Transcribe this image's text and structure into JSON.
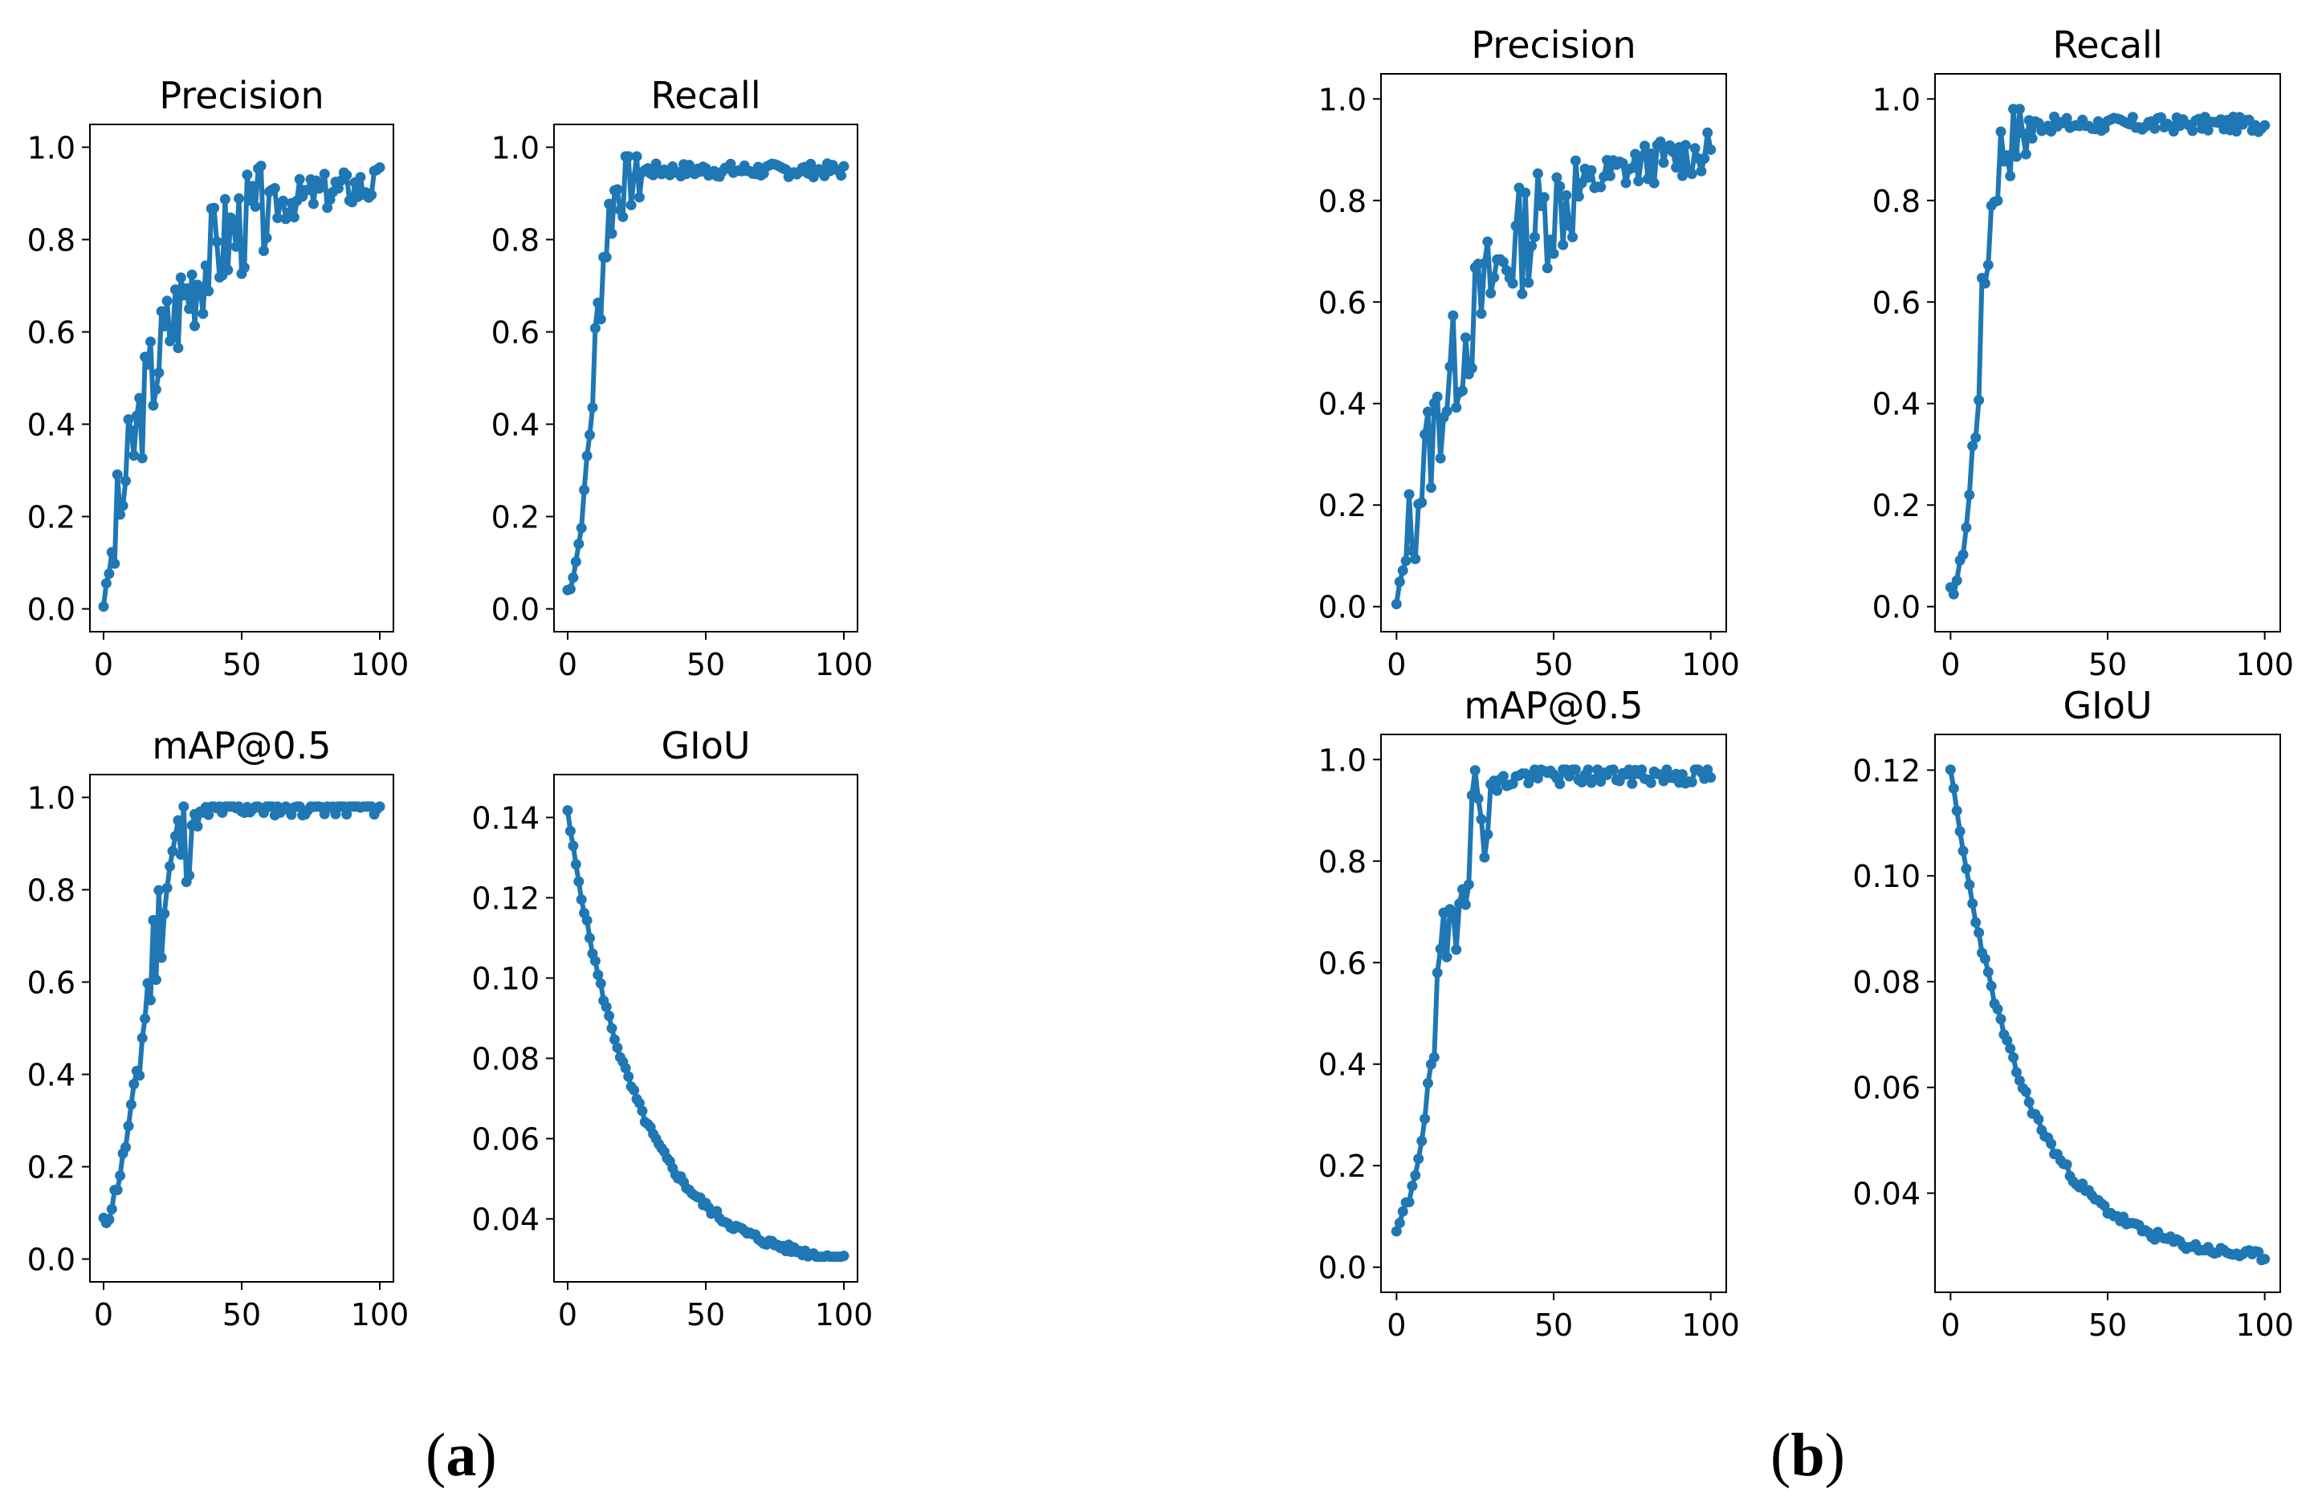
{
  "labels": {
    "a": "a",
    "b": "b",
    "open": "(",
    "close": ")"
  },
  "colors": {
    "line": "#1f77b4",
    "axis": "#000000",
    "text": "#000000"
  },
  "chart_data": [
    {
      "id": "a-precision",
      "type": "line",
      "title": "Precision",
      "xlim": [
        0,
        100
      ],
      "ylim": [
        0,
        1.0
      ],
      "xticks": [
        0,
        50,
        100
      ],
      "xticklabels": [
        "0",
        "50",
        "100"
      ],
      "yticks": [
        0,
        0.2,
        0.4,
        0.6,
        0.8,
        1.0
      ],
      "yticklabels": [
        "0.0",
        "0.2",
        "0.4",
        "0.6",
        "0.8",
        "1.0"
      ],
      "curve": "noisyRise",
      "params": {
        "start": 0.0,
        "end": 0.93,
        "k": 0.045,
        "amp": 0.07,
        "seed": 3
      }
    },
    {
      "id": "a-recall",
      "type": "line",
      "title": "Recall",
      "xlim": [
        0,
        100
      ],
      "ylim": [
        0,
        1.0
      ],
      "xticks": [
        0,
        50,
        100
      ],
      "xticklabels": [
        "0",
        "50",
        "100"
      ],
      "yticks": [
        0,
        0.2,
        0.4,
        0.6,
        0.8,
        1.0
      ],
      "yticklabels": [
        "0.0",
        "0.2",
        "0.4",
        "0.6",
        "0.8",
        "1.0"
      ],
      "curve": "plateau",
      "params": {
        "start": 0.0,
        "end": 0.95,
        "k": 0.35,
        "x0": 9,
        "amp": 0.03,
        "seed": 7
      }
    },
    {
      "id": "a-map",
      "type": "line",
      "title": "mAP@0.5",
      "xlim": [
        0,
        100
      ],
      "ylim": [
        0,
        1.0
      ],
      "xticks": [
        0,
        50,
        100
      ],
      "xticklabels": [
        "0",
        "50",
        "100"
      ],
      "yticks": [
        0,
        0.2,
        0.4,
        0.6,
        0.8,
        1.0
      ],
      "yticklabels": [
        "0.0",
        "0.2",
        "0.4",
        "0.6",
        "0.8",
        "1.0"
      ],
      "curve": "plateau",
      "params": {
        "start": 0.0,
        "end": 0.98,
        "k": 0.18,
        "x0": 14,
        "amp": 0.04,
        "seed": 11
      }
    },
    {
      "id": "a-giou",
      "type": "line",
      "title": "GIoU",
      "xlim": [
        0,
        100
      ],
      "ylim": [
        0.03,
        0.145
      ],
      "xticks": [
        0,
        50,
        100
      ],
      "xticklabels": [
        "0",
        "50",
        "100"
      ],
      "yticks": [
        0.04,
        0.06,
        0.08,
        0.1,
        0.12,
        0.14
      ],
      "yticklabels": [
        "0.04",
        "0.06",
        "0.08",
        "0.10",
        "0.12",
        "0.14"
      ],
      "curve": "decay",
      "params": {
        "start": 0.141,
        "end": 0.028,
        "k": 0.04,
        "amp": 0.002,
        "seed": 5
      }
    },
    {
      "id": "b-precision",
      "type": "line",
      "title": "Precision",
      "xlim": [
        0,
        100
      ],
      "ylim": [
        0,
        1.0
      ],
      "xticks": [
        0,
        50,
        100
      ],
      "xticklabels": [
        "0",
        "50",
        "100"
      ],
      "yticks": [
        0,
        0.2,
        0.4,
        0.6,
        0.8,
        1.0
      ],
      "yticklabels": [
        "0.0",
        "0.2",
        "0.4",
        "0.6",
        "0.8",
        "1.0"
      ],
      "curve": "noisyRise",
      "params": {
        "start": 0.0,
        "end": 0.91,
        "k": 0.04,
        "amp": 0.07,
        "seed": 13
      }
    },
    {
      "id": "b-recall",
      "type": "line",
      "title": "Recall",
      "xlim": [
        0,
        100
      ],
      "ylim": [
        0,
        1.0
      ],
      "xticks": [
        0,
        50,
        100
      ],
      "xticklabels": [
        "0",
        "50",
        "100"
      ],
      "yticks": [
        0,
        0.2,
        0.4,
        0.6,
        0.8,
        1.0
      ],
      "yticklabels": [
        "0.0",
        "0.2",
        "0.4",
        "0.6",
        "0.8",
        "1.0"
      ],
      "curve": "plateau",
      "params": {
        "start": 0.0,
        "end": 0.95,
        "k": 0.4,
        "x0": 9,
        "amp": 0.03,
        "seed": 17
      }
    },
    {
      "id": "b-map",
      "type": "line",
      "title": "mAP@0.5",
      "xlim": [
        0,
        100
      ],
      "ylim": [
        0,
        1.0
      ],
      "xticks": [
        0,
        50,
        100
      ],
      "xticklabels": [
        "0",
        "50",
        "100"
      ],
      "yticks": [
        0,
        0.2,
        0.4,
        0.6,
        0.8,
        1.0
      ],
      "yticklabels": [
        "0.0",
        "0.2",
        "0.4",
        "0.6",
        "0.8",
        "1.0"
      ],
      "curve": "plateau",
      "params": {
        "start": 0.0,
        "end": 0.97,
        "k": 0.2,
        "x0": 13,
        "amp": 0.04,
        "seed": 19
      }
    },
    {
      "id": "b-giou",
      "type": "line",
      "title": "GIoU",
      "xlim": [
        0,
        100
      ],
      "ylim": [
        0.026,
        0.122
      ],
      "xticks": [
        0,
        50,
        100
      ],
      "xticklabels": [
        "0",
        "50",
        "100"
      ],
      "yticks": [
        0.04,
        0.06,
        0.08,
        0.1,
        0.12
      ],
      "yticklabels": [
        "0.04",
        "0.06",
        "0.08",
        "0.10",
        "0.12"
      ],
      "curve": "decay",
      "params": {
        "start": 0.12,
        "end": 0.027,
        "k": 0.045,
        "amp": 0.0018,
        "seed": 23
      }
    }
  ]
}
